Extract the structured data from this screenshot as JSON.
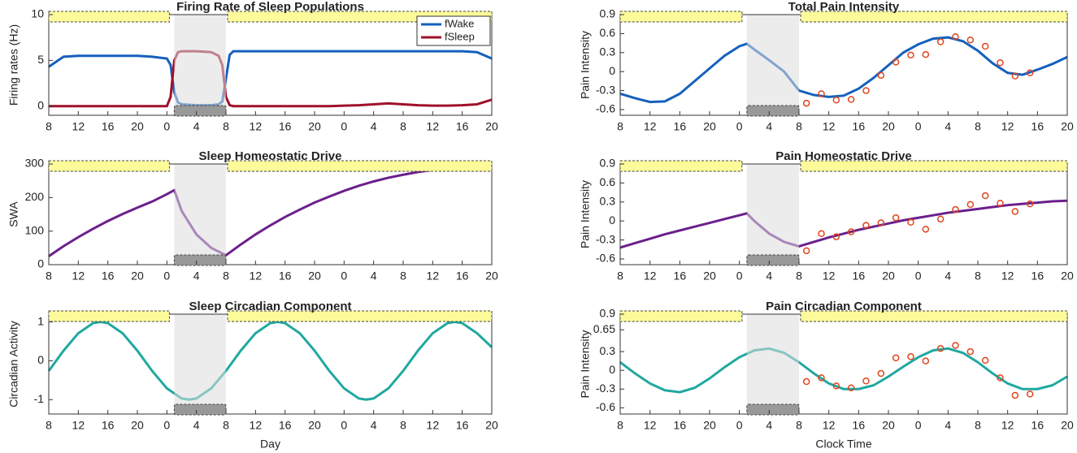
{
  "chart_data": [
    {
      "type": "line",
      "title": "Firing Rate of Sleep Populations",
      "ylabel": "Firing rates (Hz)",
      "legend": "upper right",
      "x": [
        8,
        10,
        12,
        14,
        16,
        18,
        20,
        22,
        24,
        24.5,
        25,
        25.5,
        26,
        28,
        30,
        31,
        31.5,
        32,
        32.5,
        33,
        34,
        36,
        38,
        40,
        42,
        44,
        46,
        48,
        50,
        52,
        54,
        56,
        58,
        60,
        62,
        64,
        66,
        68
      ],
      "series": [
        {
          "name": "fWake",
          "color": "#1560bd",
          "values": [
            4.3,
            5.4,
            5.5,
            5.5,
            5.5,
            5.5,
            5.5,
            5.4,
            5.2,
            4.5,
            1.5,
            0.4,
            0.2,
            0.1,
            0.1,
            0.2,
            0.5,
            3,
            5.6,
            6,
            6,
            6,
            6,
            6,
            6,
            6,
            6,
            6,
            6,
            6,
            6,
            6,
            6,
            6,
            6,
            6,
            5.9,
            5.2
          ]
        },
        {
          "name": "fSleep",
          "color": "#a0102a",
          "values": [
            0,
            0,
            0,
            0,
            0,
            0,
            0,
            0,
            0,
            1,
            5,
            5.9,
            6,
            6,
            5.9,
            5.5,
            4.5,
            1,
            0.1,
            0,
            0,
            0,
            0,
            0,
            0,
            0,
            0,
            0.05,
            0.1,
            0.2,
            0.3,
            0.2,
            0.1,
            0.05,
            0.05,
            0.1,
            0.2,
            0.7
          ]
        }
      ],
      "xlim": [
        8,
        68
      ],
      "ylim": [
        -1,
        10
      ],
      "yticks": [
        0,
        5,
        10
      ],
      "sleep_interval": [
        25,
        32
      ],
      "xticks": [
        8,
        12,
        16,
        20,
        {
          "value": 24,
          "label": "0"
        },
        {
          "value": 28,
          "label": "4"
        },
        {
          "value": 32,
          "label": "8"
        },
        {
          "value": 36,
          "label": "12"
        },
        {
          "value": 40,
          "label": "16"
        },
        {
          "value": 44,
          "label": "20"
        },
        {
          "value": 48,
          "label": "0"
        },
        {
          "value": 52,
          "label": "4"
        },
        {
          "value": 56,
          "label": "8"
        },
        {
          "value": 60,
          "label": "12"
        },
        {
          "value": 64,
          "label": "16"
        },
        {
          "value": 68,
          "label": "20"
        }
      ]
    },
    {
      "type": "line",
      "title": "Total Pain Intensity",
      "ylabel": "Pain Intensity",
      "x": [
        8,
        10,
        12,
        14,
        16,
        18,
        20,
        22,
        24,
        25,
        26,
        28,
        30,
        32,
        34,
        36,
        38,
        40,
        42,
        44,
        46,
        48,
        50,
        52,
        54,
        56,
        58,
        60,
        62,
        64,
        66,
        68
      ],
      "series": [
        {
          "color": "#1560bd",
          "values": [
            -0.35,
            -0.42,
            -0.48,
            -0.47,
            -0.35,
            -0.15,
            0.05,
            0.25,
            0.4,
            0.44,
            0.35,
            0.18,
            0.0,
            -0.3,
            -0.37,
            -0.4,
            -0.38,
            -0.27,
            -0.1,
            0.1,
            0.3,
            0.43,
            0.52,
            0.54,
            0.48,
            0.33,
            0.13,
            -0.02,
            -0.05,
            0.03,
            0.12,
            0.23
          ]
        }
      ],
      "points": {
        "color": "#e0451d",
        "x": [
          33,
          35,
          37,
          39,
          41,
          43,
          45,
          47,
          49,
          51,
          53,
          55,
          57,
          59,
          61,
          63
        ],
        "values": [
          -0.5,
          -0.35,
          -0.45,
          -0.44,
          -0.3,
          -0.06,
          0.15,
          0.26,
          0.27,
          0.47,
          0.55,
          0.5,
          0.4,
          0.14,
          -0.07,
          -0.02
        ]
      },
      "xlim": [
        8,
        68
      ],
      "ylim": [
        -0.69,
        0.9
      ],
      "yticks": [
        -0.6,
        -0.3,
        0,
        0.3,
        0.6,
        0.9
      ],
      "sleep_interval": [
        25,
        32
      ],
      "xticks": [
        8,
        12,
        16,
        20,
        {
          "value": 24,
          "label": "0"
        },
        {
          "value": 28,
          "label": "4"
        },
        {
          "value": 32,
          "label": "8"
        },
        {
          "value": 36,
          "label": "12"
        },
        {
          "value": 40,
          "label": "16"
        },
        {
          "value": 44,
          "label": "20"
        },
        {
          "value": 48,
          "label": "0"
        },
        {
          "value": 52,
          "label": "4"
        },
        {
          "value": 56,
          "label": "8"
        },
        {
          "value": 60,
          "label": "12"
        },
        {
          "value": 64,
          "label": "16"
        },
        {
          "value": 68,
          "label": "20"
        }
      ]
    },
    {
      "type": "line",
      "title": "Sleep Homeostatic Drive",
      "ylabel": "SWA",
      "x": [
        8,
        10,
        12,
        14,
        16,
        18,
        20,
        22,
        24,
        25,
        26,
        28,
        30,
        32,
        34,
        36,
        38,
        40,
        42,
        44,
        46,
        48,
        50,
        52,
        54,
        56,
        58,
        60,
        62,
        64,
        66,
        68
      ],
      "series": [
        {
          "color": "#6c1f8c",
          "values": [
            25,
            55,
            82,
            107,
            130,
            151,
            170,
            188,
            210,
            222,
            160,
            90,
            50,
            28,
            60,
            90,
            117,
            142,
            164,
            185,
            203,
            220,
            235,
            248,
            259,
            268,
            276,
            282,
            286,
            289,
            291,
            292
          ]
        }
      ],
      "xlim": [
        8,
        68
      ],
      "ylim": [
        0,
        300
      ],
      "yticks": [
        0,
        100,
        200,
        300
      ],
      "sleep_interval": [
        25,
        32
      ],
      "xticks": [
        8,
        12,
        16,
        20,
        {
          "value": 24,
          "label": "0"
        },
        {
          "value": 28,
          "label": "4"
        },
        {
          "value": 32,
          "label": "8"
        },
        {
          "value": 36,
          "label": "12"
        },
        {
          "value": 40,
          "label": "16"
        },
        {
          "value": 44,
          "label": "20"
        },
        {
          "value": 48,
          "label": "0"
        },
        {
          "value": 52,
          "label": "4"
        },
        {
          "value": 56,
          "label": "8"
        },
        {
          "value": 60,
          "label": "12"
        },
        {
          "value": 64,
          "label": "16"
        },
        {
          "value": 68,
          "label": "20"
        }
      ]
    },
    {
      "type": "line",
      "title": "Pain Homeostatic Drive",
      "ylabel": "Pain Intensity",
      "x": [
        8,
        10,
        12,
        14,
        16,
        18,
        20,
        22,
        24,
        25,
        26,
        28,
        30,
        32,
        34,
        36,
        38,
        40,
        42,
        44,
        46,
        48,
        50,
        52,
        54,
        56,
        58,
        60,
        62,
        64,
        66,
        68
      ],
      "series": [
        {
          "color": "#6c1f8c",
          "values": [
            -0.42,
            -0.35,
            -0.28,
            -0.21,
            -0.15,
            -0.09,
            -0.03,
            0.03,
            0.09,
            0.12,
            0.0,
            -0.2,
            -0.33,
            -0.4,
            -0.33,
            -0.26,
            -0.2,
            -0.14,
            -0.09,
            -0.04,
            0.01,
            0.05,
            0.09,
            0.13,
            0.16,
            0.19,
            0.22,
            0.25,
            0.27,
            0.29,
            0.31,
            0.32
          ]
        }
      ],
      "points": {
        "color": "#e0451d",
        "x": [
          33,
          35,
          37,
          39,
          41,
          43,
          45,
          47,
          49,
          51,
          53,
          55,
          57,
          59,
          61,
          63
        ],
        "values": [
          -0.47,
          -0.2,
          -0.25,
          -0.17,
          -0.07,
          -0.03,
          0.05,
          -0.02,
          -0.13,
          0.03,
          0.18,
          0.26,
          0.4,
          0.28,
          0.15,
          0.27
        ]
      },
      "xlim": [
        8,
        68
      ],
      "ylim": [
        -0.69,
        0.9
      ],
      "yticks": [
        -0.6,
        -0.3,
        0,
        0.3,
        0.6,
        0.9
      ],
      "sleep_interval": [
        25,
        32
      ],
      "xticks": [
        8,
        12,
        16,
        20,
        {
          "value": 24,
          "label": "0"
        },
        {
          "value": 28,
          "label": "4"
        },
        {
          "value": 32,
          "label": "8"
        },
        {
          "value": 36,
          "label": "12"
        },
        {
          "value": 40,
          "label": "16"
        },
        {
          "value": 44,
          "label": "20"
        },
        {
          "value": 48,
          "label": "0"
        },
        {
          "value": 52,
          "label": "4"
        },
        {
          "value": 56,
          "label": "8"
        },
        {
          "value": 60,
          "label": "12"
        },
        {
          "value": 64,
          "label": "16"
        },
        {
          "value": 68,
          "label": "20"
        }
      ]
    },
    {
      "type": "line",
      "title": "Sleep Circadian Component",
      "ylabel": "Circadian Activity",
      "xlabel": "Day",
      "x": [
        8,
        10,
        12,
        14,
        15,
        16,
        18,
        20,
        22,
        24,
        26,
        27,
        28,
        30,
        32,
        34,
        36,
        38,
        39,
        40,
        42,
        44,
        46,
        48,
        50,
        51,
        52,
        54,
        56,
        58,
        60,
        62,
        63,
        64,
        66,
        68
      ],
      "series": [
        {
          "color": "#20a8a0",
          "values": [
            -0.26,
            0.26,
            0.71,
            0.97,
            1,
            0.97,
            0.71,
            0.26,
            -0.26,
            -0.71,
            -0.97,
            -1,
            -0.97,
            -0.71,
            -0.26,
            0.26,
            0.71,
            0.97,
            1,
            0.97,
            0.71,
            0.26,
            -0.26,
            -0.71,
            -0.97,
            -1,
            -0.97,
            -0.71,
            -0.26,
            0.26,
            0.71,
            0.97,
            1,
            0.97,
            0.71,
            0.35
          ]
        }
      ],
      "xlim": [
        8,
        68
      ],
      "ylim": [
        -1.37,
        1.2
      ],
      "yticks": [
        -1,
        0,
        1
      ],
      "sleep_interval": [
        25,
        32
      ],
      "xticks": [
        8,
        12,
        16,
        20,
        {
          "value": 24,
          "label": "0"
        },
        {
          "value": 28,
          "label": "4"
        },
        {
          "value": 32,
          "label": "8"
        },
        {
          "value": 36,
          "label": "12"
        },
        {
          "value": 40,
          "label": "16"
        },
        {
          "value": 44,
          "label": "20"
        },
        {
          "value": 48,
          "label": "0"
        },
        {
          "value": 52,
          "label": "4"
        },
        {
          "value": 56,
          "label": "8"
        },
        {
          "value": 60,
          "label": "12"
        },
        {
          "value": 64,
          "label": "16"
        },
        {
          "value": 68,
          "label": "20"
        }
      ]
    },
    {
      "type": "line",
      "title": "Pain Circadian Component",
      "ylabel": "Pain Intensity",
      "xlabel": "Clock Time",
      "x": [
        8,
        10,
        12,
        14,
        16,
        18,
        20,
        22,
        24,
        26,
        28,
        30,
        32,
        34,
        36,
        38,
        40,
        42,
        44,
        46,
        48,
        50,
        52,
        54,
        56,
        58,
        60,
        62,
        64,
        66,
        68
      ],
      "series": [
        {
          "color": "#20a8a0",
          "values": [
            0.13,
            -0.05,
            -0.21,
            -0.32,
            -0.35,
            -0.28,
            -0.13,
            0.05,
            0.21,
            0.32,
            0.35,
            0.28,
            0.13,
            -0.05,
            -0.21,
            -0.3,
            -0.3,
            -0.24,
            -0.1,
            0.06,
            0.21,
            0.32,
            0.35,
            0.28,
            0.13,
            -0.05,
            -0.21,
            -0.3,
            -0.3,
            -0.24,
            -0.1
          ]
        }
      ],
      "points": {
        "color": "#e0451d",
        "x": [
          33,
          35,
          37,
          39,
          41,
          43,
          45,
          47,
          49,
          51,
          53,
          55,
          57,
          59,
          61,
          63
        ],
        "values": [
          -0.18,
          -0.12,
          -0.25,
          -0.28,
          -0.17,
          -0.05,
          0.2,
          0.22,
          0.15,
          0.35,
          0.4,
          0.3,
          0.16,
          -0.12,
          -0.4,
          -0.38
        ]
      },
      "xlim": [
        8,
        68
      ],
      "ylim": [
        -0.7,
        0.9
      ],
      "yticks": [
        -0.6,
        -0.3,
        0,
        0.3,
        0.65,
        0.9
      ],
      "sleep_interval": [
        25,
        32
      ],
      "xticks": [
        8,
        12,
        16,
        20,
        {
          "value": 24,
          "label": "0"
        },
        {
          "value": 28,
          "label": "4"
        },
        {
          "value": 32,
          "label": "8"
        },
        {
          "value": 36,
          "label": "12"
        },
        {
          "value": 40,
          "label": "16"
        },
        {
          "value": 44,
          "label": "20"
        },
        {
          "value": 48,
          "label": "0"
        },
        {
          "value": 52,
          "label": "4"
        },
        {
          "value": 56,
          "label": "8"
        },
        {
          "value": 60,
          "label": "12"
        },
        {
          "value": 64,
          "label": "16"
        },
        {
          "value": 68,
          "label": "20"
        }
      ]
    }
  ]
}
